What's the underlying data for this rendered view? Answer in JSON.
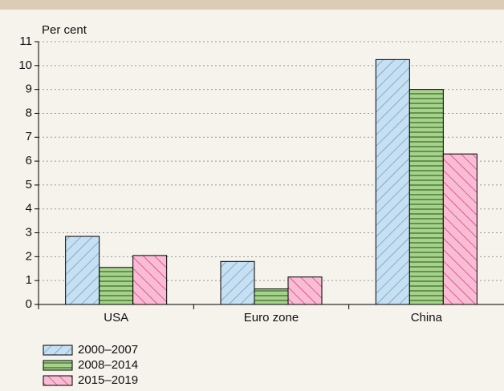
{
  "chart_data": {
    "type": "bar",
    "y_label": "Per cent",
    "categories": [
      "USA",
      "Euro zone",
      "China"
    ],
    "series": [
      {
        "name": "2000–2007",
        "color": "#c6dff1",
        "values": [
          2.85,
          1.8,
          10.25
        ]
      },
      {
        "name": "2008–2014",
        "color": "#a9d18e",
        "values": [
          1.55,
          0.65,
          9.0
        ]
      },
      {
        "name": "2015–2019",
        "color": "#f8bcd3",
        "values": [
          2.05,
          1.15,
          6.3
        ]
      }
    ],
    "ylim": [
      0,
      11
    ],
    "yticks": [
      0,
      1,
      2,
      3,
      4,
      5,
      6,
      7,
      8,
      9,
      10,
      11
    ],
    "grid": true,
    "legend": "bottom-left"
  }
}
